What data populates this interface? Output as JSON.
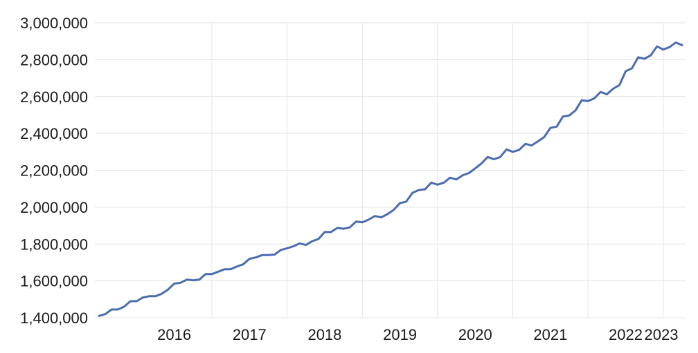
{
  "chart_data": {
    "type": "line",
    "title": "",
    "xlabel": "",
    "ylabel": "",
    "ylim": [
      1400000,
      3000000
    ],
    "y_ticks": [
      1400000,
      1600000,
      1800000,
      2000000,
      2200000,
      2400000,
      2600000,
      2800000,
      3000000
    ],
    "y_tick_labels": [
      "1,400,000",
      "1,600,000",
      "1,800,000",
      "2,000,000",
      "2,200,000",
      "2,400,000",
      "2,600,000",
      "2,800,000",
      "3,000,000"
    ],
    "x_tick_labels": [
      "2016",
      "2017",
      "2018",
      "2019",
      "2020",
      "2021",
      "2022",
      "2023"
    ],
    "x_range": [
      "2015-07",
      "2023-04"
    ],
    "grid": true,
    "series": [
      {
        "color": "#4a6cb0",
        "x": [
          "2015-07",
          "2015-08",
          "2015-09",
          "2015-10",
          "2015-11",
          "2015-12",
          "2016-01",
          "2016-02",
          "2016-03",
          "2016-04",
          "2016-05",
          "2016-06",
          "2016-07",
          "2016-08",
          "2016-09",
          "2016-10",
          "2016-11",
          "2016-12",
          "2017-01",
          "2017-02",
          "2017-03",
          "2017-04",
          "2017-05",
          "2017-06",
          "2017-07",
          "2017-08",
          "2017-09",
          "2017-10",
          "2017-11",
          "2017-12",
          "2018-01",
          "2018-02",
          "2018-03",
          "2018-04",
          "2018-05",
          "2018-06",
          "2018-07",
          "2018-08",
          "2018-09",
          "2018-10",
          "2018-11",
          "2018-12",
          "2019-01",
          "2019-02",
          "2019-03",
          "2019-04",
          "2019-05",
          "2019-06",
          "2019-07",
          "2019-08",
          "2019-09",
          "2019-10",
          "2019-11",
          "2019-12",
          "2020-01",
          "2020-02",
          "2020-03",
          "2020-04",
          "2020-05",
          "2020-06",
          "2020-07",
          "2020-08",
          "2020-09",
          "2020-10",
          "2020-11",
          "2020-12",
          "2021-01",
          "2021-02",
          "2021-03",
          "2021-04",
          "2021-05",
          "2021-06",
          "2021-07",
          "2021-08",
          "2021-09",
          "2021-10",
          "2021-11",
          "2021-12",
          "2022-01",
          "2022-02",
          "2022-03",
          "2022-04",
          "2022-05",
          "2022-06",
          "2022-07",
          "2022-08",
          "2022-09",
          "2022-10",
          "2022-11",
          "2022-12",
          "2023-01",
          "2023-02",
          "2023-03",
          "2023-04"
        ],
        "values": [
          1410000,
          1420000,
          1445000,
          1445000,
          1460000,
          1490000,
          1490000,
          1510000,
          1517000,
          1517000,
          1530000,
          1553000,
          1585000,
          1590000,
          1607000,
          1603000,
          1607000,
          1637000,
          1637000,
          1650000,
          1663000,
          1663000,
          1678000,
          1690000,
          1720000,
          1727000,
          1740000,
          1740000,
          1743000,
          1768000,
          1777000,
          1788000,
          1803000,
          1795000,
          1815000,
          1827000,
          1865000,
          1865000,
          1887000,
          1883000,
          1890000,
          1922000,
          1918000,
          1932000,
          1952000,
          1945000,
          1962000,
          1985000,
          2022000,
          2030000,
          2078000,
          2093000,
          2097000,
          2133000,
          2122000,
          2133000,
          2160000,
          2150000,
          2173000,
          2185000,
          2210000,
          2237000,
          2272000,
          2260000,
          2272000,
          2313000,
          2300000,
          2310000,
          2343000,
          2335000,
          2357000,
          2380000,
          2430000,
          2437000,
          2492000,
          2497000,
          2525000,
          2580000,
          2575000,
          2590000,
          2625000,
          2612000,
          2642000,
          2662000,
          2737000,
          2753000,
          2813000,
          2805000,
          2823000,
          2872000,
          2855000,
          2868000,
          2893000,
          2879000
        ]
      }
    ]
  }
}
